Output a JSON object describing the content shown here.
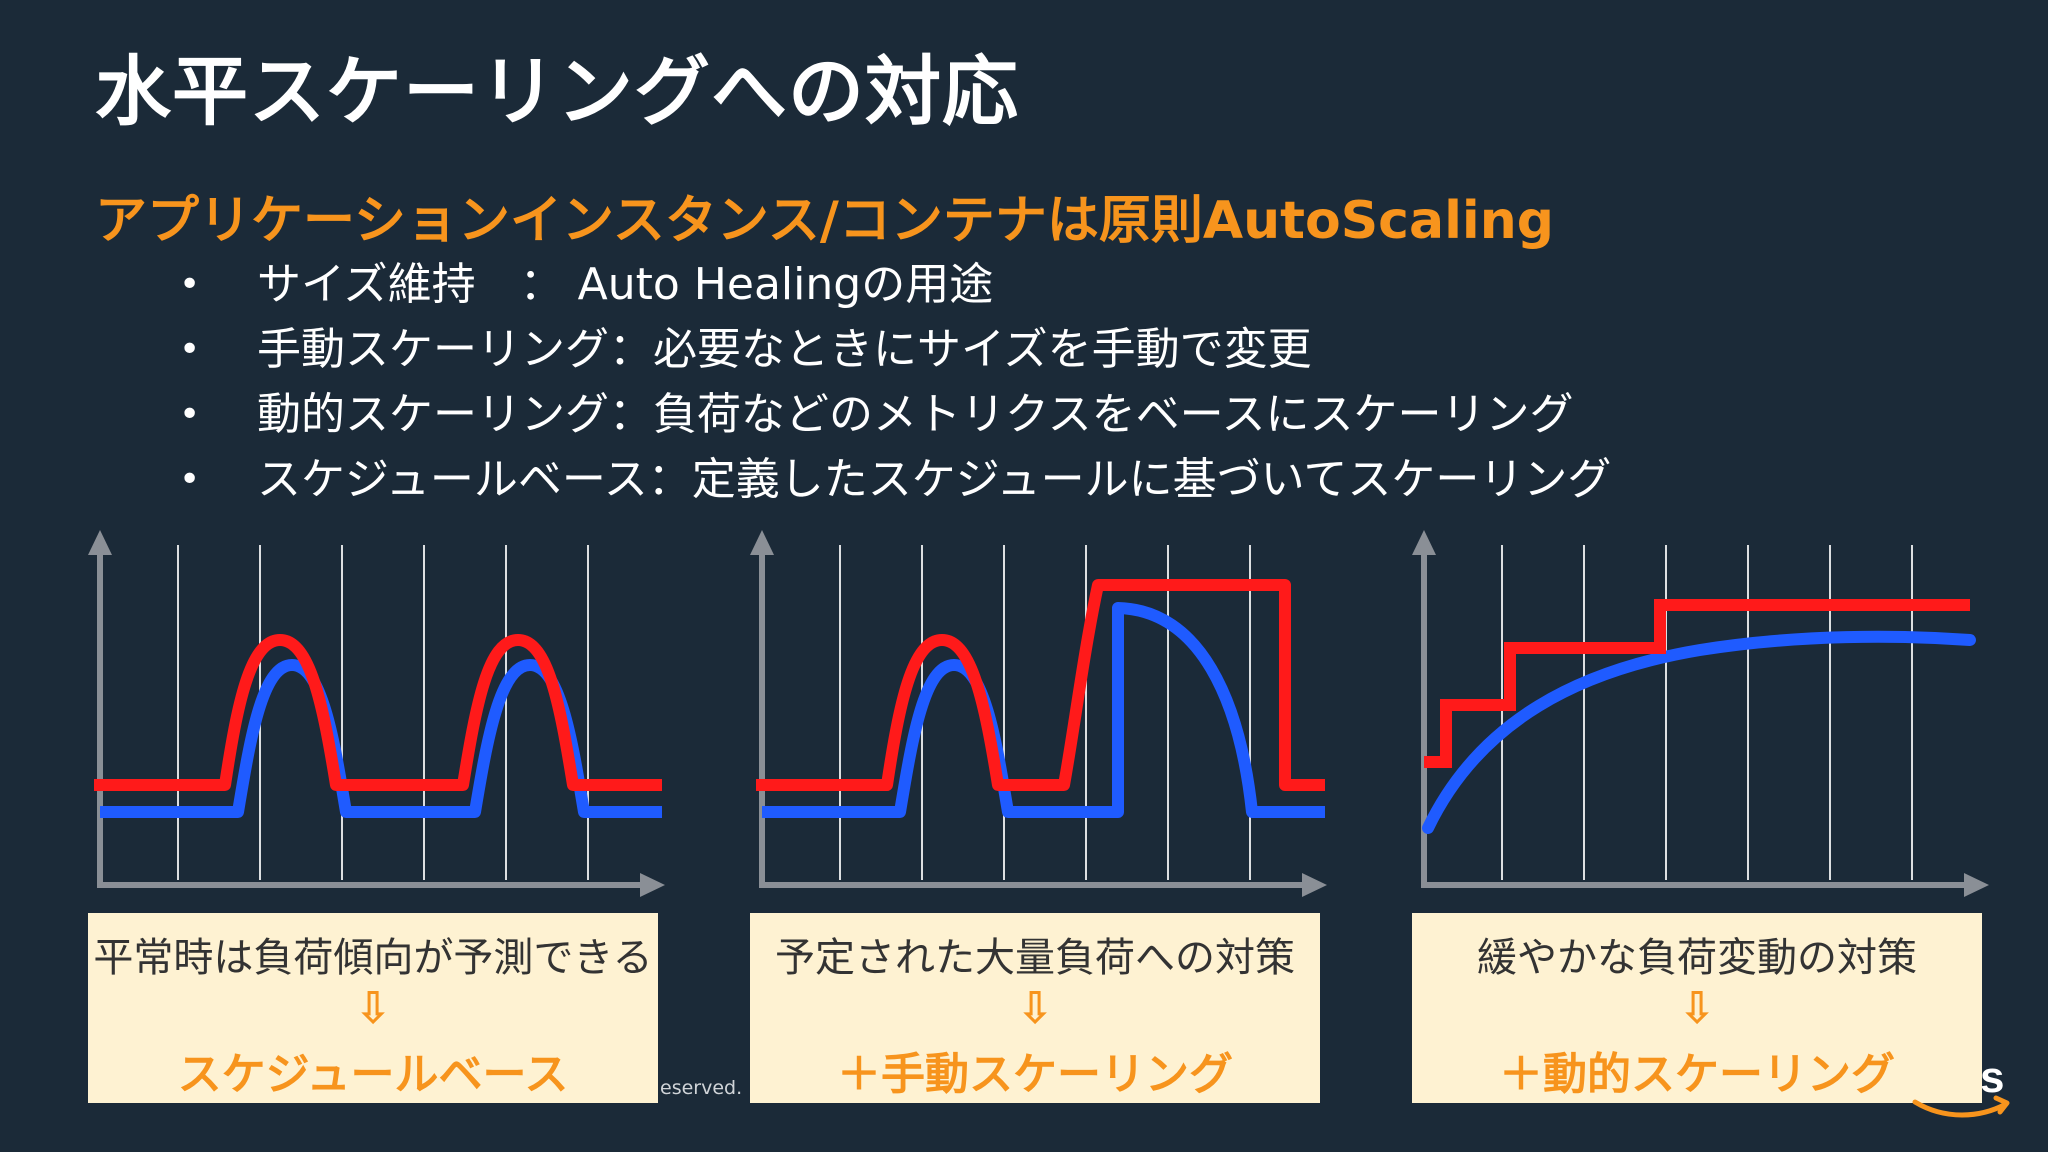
{
  "slide": {
    "title": "水平スケーリングへの対応",
    "subtitle": "アプリケーションインスタンス/コンテナは原則AutoScaling",
    "bullets": [
      "サイズ維持　：  Auto Healingの用途",
      "手動スケーリング：必要なときにサイズを手動で変更",
      "動的スケーリング：負荷などのメトリクスをベースにスケーリング",
      "スケジュールベース：定義したスケジュールに基づいてスケーリング"
    ],
    "bullet_symbol": "•",
    "panels": [
      {
        "caption": "平常時は負荷傾向が予測できる",
        "arrow": "⇩",
        "result": "スケジュールベース"
      },
      {
        "caption": "予定された大量負荷への対策",
        "arrow": "⇩",
        "result": "＋手動スケーリング"
      },
      {
        "caption": "緩やかな負荷変動の対策",
        "arrow": "⇩",
        "result": "＋動的スケーリング"
      }
    ],
    "footer_fragment": "eserved.",
    "colors": {
      "background": "#1b2a38",
      "accent": "#f7941d",
      "capacity_line": "#ff1a1a",
      "load_line": "#1f5bff",
      "box_fill": "#fef2d2"
    },
    "logo_icon": "aws-logo-icon"
  }
}
